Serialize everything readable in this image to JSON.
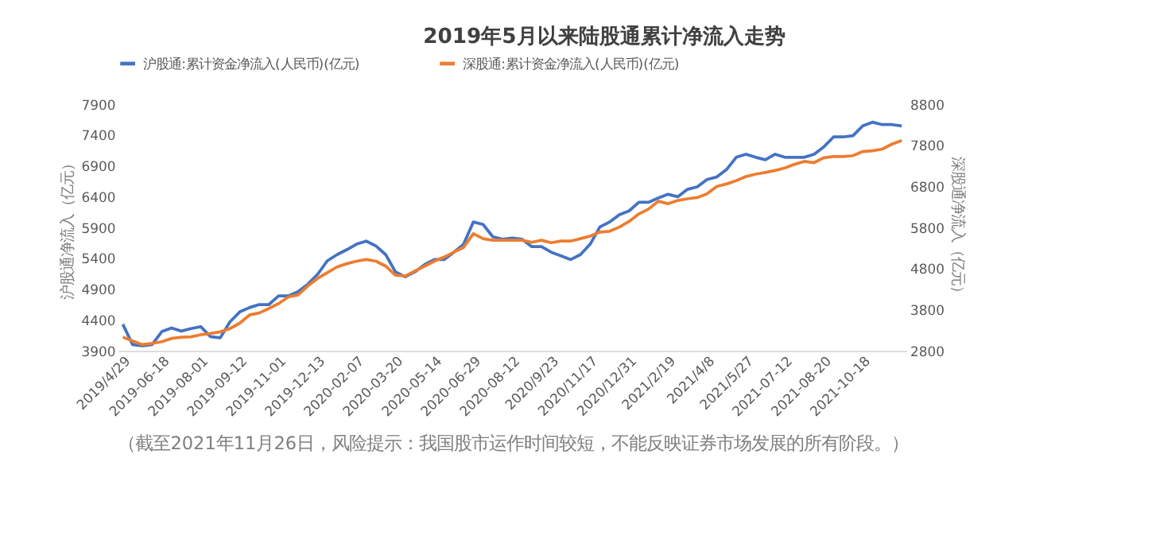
{
  "chart_data": {
    "type": "line",
    "title": "2019年5月以来陆股通累计净流入走势",
    "ylabel": "沪股通净流入（亿元）",
    "y2label": "深股通净流入（亿元）",
    "categories": [
      "2019/4/29",
      null,
      null,
      null,
      "2019-06-18",
      null,
      null,
      null,
      "2019-08-01",
      null,
      null,
      null,
      "2019-09-12",
      null,
      null,
      null,
      "2019-11-01",
      null,
      null,
      null,
      "2019-12-13",
      null,
      null,
      null,
      "2020-02-07",
      null,
      null,
      null,
      "2020-03-20",
      null,
      null,
      null,
      "2020-05-14",
      null,
      null,
      null,
      "2020-06-29",
      null,
      null,
      null,
      "2020-08-12",
      null,
      null,
      null,
      "2020/9/23",
      null,
      null,
      null,
      "2020/11/17",
      null,
      null,
      null,
      "2020/12/31",
      null,
      null,
      null,
      "2021/2/19",
      null,
      null,
      null,
      "2021/4/8",
      null,
      null,
      null,
      "2021/5/27",
      null,
      null,
      null,
      "2021-07-12",
      null,
      null,
      null,
      "2021-08-20",
      null,
      null,
      null,
      "2021-10-18",
      null,
      null,
      null,
      null
    ],
    "series": [
      {
        "name": "沪股通:累计资金净流入(人民币)(亿元)",
        "color": "#4472c4",
        "values": [
          4330,
          4000,
          3980,
          4000,
          4210,
          4270,
          4220,
          4260,
          4290,
          4130,
          4110,
          4370,
          4530,
          4600,
          4650,
          4650,
          4790,
          4790,
          4860,
          4980,
          5140,
          5360,
          5460,
          5540,
          5630,
          5680,
          5600,
          5460,
          5180,
          5100,
          5180,
          5300,
          5380,
          5380,
          5500,
          5630,
          5990,
          5950,
          5750,
          5710,
          5730,
          5710,
          5590,
          5590,
          5500,
          5440,
          5380,
          5460,
          5630,
          5910,
          5990,
          6110,
          6170,
          6310,
          6310,
          6380,
          6440,
          6400,
          6520,
          6560,
          6680,
          6720,
          6840,
          7040,
          7090,
          7040,
          7000,
          7090,
          7040,
          7040,
          7040,
          7090,
          7210,
          7370,
          7370,
          7390,
          7550,
          7610,
          7570,
          7570,
          7550
        ]
      },
      {
        "name": "深股通:累计资金净流入(人民币)(亿元)",
        "color": "#ed7d31",
        "axis": "y2",
        "values": [
          3130,
          3040,
          2950,
          2980,
          3020,
          3100,
          3130,
          3140,
          3190,
          3220,
          3260,
          3340,
          3470,
          3670,
          3720,
          3830,
          3950,
          4110,
          4160,
          4380,
          4560,
          4700,
          4840,
          4920,
          4980,
          5020,
          4980,
          4860,
          4640,
          4620,
          4740,
          4860,
          4980,
          5080,
          5200,
          5320,
          5650,
          5530,
          5490,
          5490,
          5490,
          5490,
          5440,
          5490,
          5430,
          5470,
          5470,
          5530,
          5590,
          5690,
          5710,
          5810,
          5950,
          6130,
          6250,
          6440,
          6380,
          6460,
          6500,
          6530,
          6620,
          6800,
          6860,
          6940,
          7040,
          7100,
          7140,
          7190,
          7250,
          7340,
          7410,
          7380,
          7500,
          7530,
          7530,
          7550,
          7650,
          7670,
          7710,
          7830,
          7920
        ]
      }
    ],
    "ylim": [
      3900,
      7900
    ],
    "yticks": [
      3900,
      4400,
      4900,
      5400,
      5900,
      6400,
      6900,
      7400,
      7900
    ],
    "y2lim": [
      2800,
      8800
    ],
    "y2ticks": [
      2800,
      3800,
      4800,
      5800,
      6800,
      7800,
      8800
    ],
    "legend": "top",
    "grid": false,
    "annotations": [
      "（截至2021年11月26日，风险提示：我国股市运作时间较短，不能反映证券市场发展的所有阶段。）"
    ]
  }
}
